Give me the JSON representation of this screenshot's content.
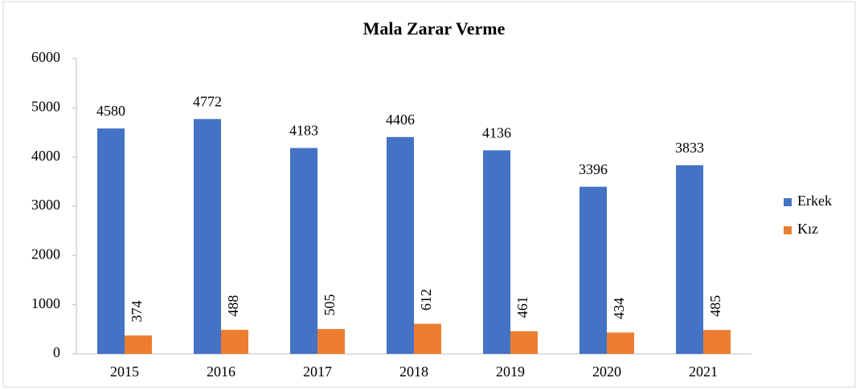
{
  "chart_data": {
    "type": "bar",
    "title": "Mala Zarar Verme",
    "categories": [
      "2015",
      "2016",
      "2017",
      "2018",
      "2019",
      "2020",
      "2021"
    ],
    "series": [
      {
        "name": "Erkek",
        "color": "#4472c4",
        "values": [
          4580,
          4772,
          4183,
          4406,
          4136,
          3396,
          3833
        ]
      },
      {
        "name": "Kız",
        "color": "#ed7d31",
        "values": [
          374,
          488,
          505,
          612,
          461,
          434,
          485
        ]
      }
    ],
    "ylim": [
      0,
      6000
    ],
    "yticks": [
      0,
      1000,
      2000,
      3000,
      4000,
      5000,
      6000
    ],
    "grid": false,
    "legend": "right"
  }
}
